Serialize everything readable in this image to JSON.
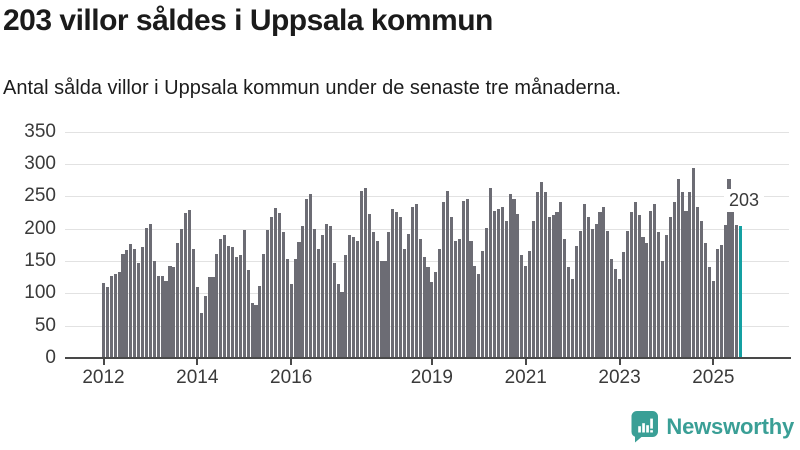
{
  "header": {
    "title": "203 villor såldes i Uppsala kommun",
    "subtitle": "Antal sålda villor i Uppsala kommun under de senaste tre månaderna."
  },
  "annotation": {
    "last_value_label": "203"
  },
  "branding": {
    "label": "Newsworthy",
    "icon": "newsworthy-chart-bubble-icon"
  },
  "colors": {
    "bar": "#6c6c74",
    "highlight": "#14a0a2",
    "grid": "#e2e2e2",
    "axis": "#494949",
    "text": "#1d1d1d",
    "tick_text": "#3a3a3a",
    "brand": "#3a9f96",
    "background": "#ffffff"
  },
  "chart_data": {
    "type": "bar",
    "title": "203 villor såldes i Uppsala kommun",
    "subtitle": "Antal sålda villor i Uppsala kommun under de senaste tre månaderna.",
    "xlabel": "",
    "ylabel": "",
    "frequency": "monthly",
    "x_start": "2012-01",
    "x_end": "2025-08",
    "ylim": [
      0,
      350
    ],
    "yticks": [
      0,
      50,
      100,
      150,
      200,
      250,
      300,
      350
    ],
    "xticks": [
      {
        "label": "2012",
        "month_index": 0
      },
      {
        "label": "2014",
        "month_index": 24
      },
      {
        "label": "2016",
        "month_index": 48
      },
      {
        "label": "2019",
        "month_index": 84
      },
      {
        "label": "2021",
        "month_index": 108
      },
      {
        "label": "2023",
        "month_index": 132
      },
      {
        "label": "2025",
        "month_index": 156
      }
    ],
    "grid": "horizontal",
    "legend": "none",
    "highlight_last": true,
    "last_value_label": "203",
    "series": [
      {
        "name": "Antal sålda villor, rullande tre månader",
        "values": [
          114,
          108,
          125,
          129,
          131,
          159,
          165,
          175,
          167,
          145,
          170,
          200,
          206,
          149,
          126,
          125,
          118,
          141,
          139,
          177,
          198,
          222,
          227,
          167,
          108,
          68,
          95,
          123,
          123,
          160,
          183,
          188,
          172,
          170,
          154,
          157,
          196,
          134,
          83,
          80,
          110,
          159,
          196,
          216,
          230,
          222,
          193,
          152,
          113,
          152,
          178,
          203,
          244,
          252,
          198,
          167,
          188,
          206,
          203,
          146,
          113,
          100,
          157,
          188,
          185,
          180,
          257,
          262,
          221,
          193,
          180,
          149,
          149,
          193,
          229,
          224,
          216,
          167,
          190,
          232,
          237,
          183,
          154,
          139,
          116,
          131,
          167,
          239,
          257,
          216,
          180,
          183,
          242,
          244,
          180,
          140,
          128,
          164,
          200,
          262,
          226,
          229,
          232,
          211,
          252,
          244,
          221,
          157,
          141,
          164,
          211,
          255,
          270,
          255,
          216,
          219,
          224,
          239,
          183,
          139,
          121,
          172,
          195,
          237,
          216,
          198,
          206,
          224,
          232,
          195,
          152,
          136,
          121,
          162,
          195,
          224,
          239,
          219,
          185,
          177,
          226,
          237,
          193,
          149,
          188,
          216,
          240,
          275,
          255,
          226,
          255,
          293,
          232,
          211,
          177,
          139,
          118,
          167,
          173,
          204,
          275,
          253,
          204,
          203
        ]
      }
    ]
  }
}
